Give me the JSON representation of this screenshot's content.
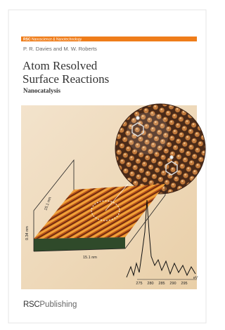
{
  "series_label": {
    "prefix": "RSC",
    "name": "Nanoscience & Nanotechnology"
  },
  "authors": "P. R. Davies and M. W. Roberts",
  "title": [
    "Atom Resolved",
    "Surface Reactions"
  ],
  "subtitle": "Nanocatalysis",
  "figure": {
    "axis_labels": [
      "15.1 nm",
      "0.34 nm",
      "15.1 nm"
    ],
    "spectrum_ticks": [
      "275",
      "280",
      "285",
      "290",
      "295"
    ],
    "spectrum_unit": "eV"
  },
  "publisher": {
    "prefix": "RSC",
    "name": "Publishing"
  }
}
